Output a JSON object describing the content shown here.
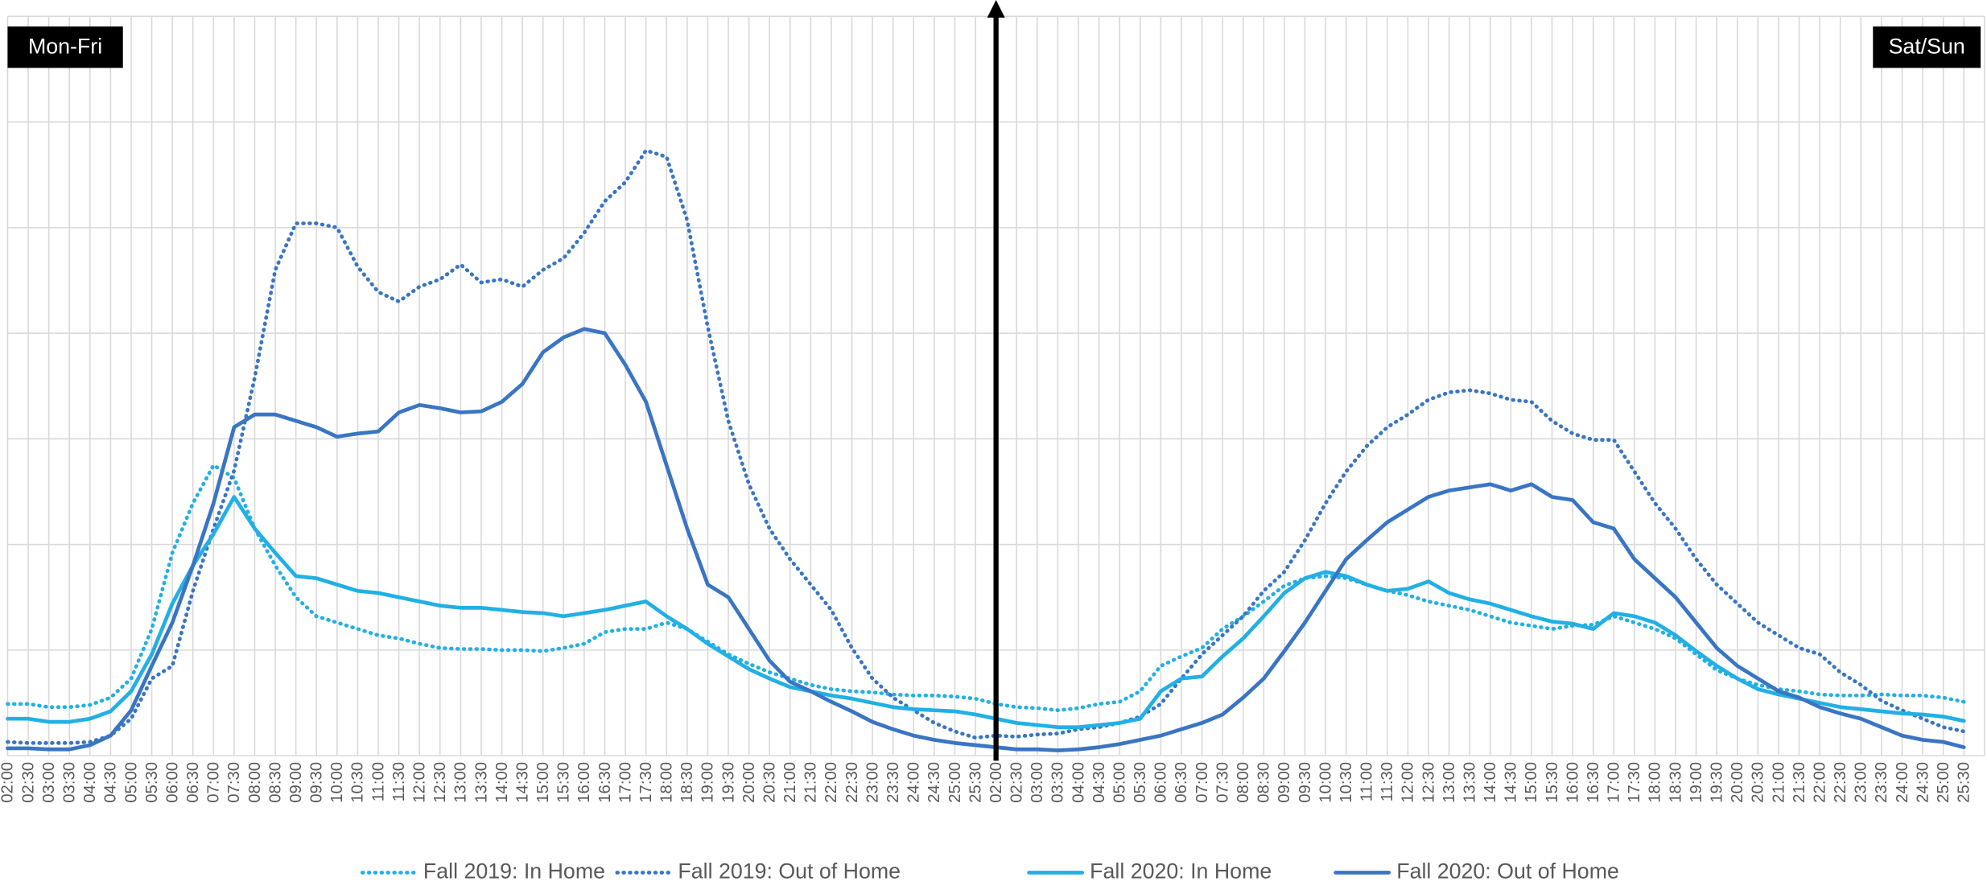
{
  "chart_data": {
    "type": "line",
    "annotations": [
      "Mon-Fri",
      "Sat/Sun"
    ],
    "categories": [
      "02:00",
      "02:30",
      "03:00",
      "03:30",
      "04:00",
      "04:30",
      "05:00",
      "05:30",
      "06:00",
      "06:30",
      "07:00",
      "07:30",
      "08:00",
      "08:30",
      "09:00",
      "09:30",
      "10:00",
      "10:30",
      "11:00",
      "11:30",
      "12:00",
      "12:30",
      "13:00",
      "13:30",
      "14:00",
      "14:30",
      "15:00",
      "15:30",
      "16:00",
      "16:30",
      "17:00",
      "17:30",
      "18:00",
      "18:30",
      "19:00",
      "19:30",
      "20:00",
      "20:30",
      "21:00",
      "21:30",
      "22:00",
      "22:30",
      "23:00",
      "23:30",
      "24:00",
      "24:30",
      "25:00",
      "25:30",
      "02:00",
      "02:30",
      "03:00",
      "03:30",
      "04:00",
      "04:30",
      "05:00",
      "05:30",
      "06:00",
      "06:30",
      "07:00",
      "07:30",
      "08:00",
      "08:30",
      "09:00",
      "09:30",
      "10:00",
      "10:30",
      "11:00",
      "11:30",
      "12:00",
      "12:30",
      "13:00",
      "13:30",
      "14:00",
      "14:30",
      "15:00",
      "15:30",
      "16:00",
      "16:30",
      "17:00",
      "17:30",
      "18:00",
      "18:30",
      "19:00",
      "19:30",
      "20:00",
      "20:30",
      "21:00",
      "21:30",
      "22:00",
      "22:30",
      "23:00",
      "23:30",
      "24:00",
      "24:30",
      "25:00",
      "25:30"
    ],
    "ylim": [
      0,
      7
    ],
    "yticks": [
      0,
      1,
      2,
      3,
      4,
      5,
      6,
      7
    ],
    "grid": true,
    "series": [
      {
        "name": "Fall 2019: In Home",
        "color": "#22b0e4",
        "dash": "dotted",
        "values": [
          0.49,
          0.49,
          0.46,
          0.46,
          0.48,
          0.55,
          0.73,
          1.2,
          1.92,
          2.39,
          2.75,
          2.63,
          2.15,
          1.8,
          1.5,
          1.32,
          1.26,
          1.2,
          1.14,
          1.11,
          1.06,
          1.02,
          1.01,
          1.01,
          1.0,
          1.0,
          0.99,
          1.02,
          1.06,
          1.17,
          1.2,
          1.2,
          1.26,
          1.2,
          1.08,
          0.96,
          0.87,
          0.79,
          0.73,
          0.67,
          0.63,
          0.61,
          0.6,
          0.58,
          0.57,
          0.57,
          0.56,
          0.54,
          0.49,
          0.46,
          0.45,
          0.43,
          0.45,
          0.49,
          0.51,
          0.61,
          0.85,
          0.94,
          1.02,
          1.2,
          1.32,
          1.46,
          1.61,
          1.68,
          1.7,
          1.68,
          1.62,
          1.56,
          1.52,
          1.46,
          1.42,
          1.38,
          1.32,
          1.26,
          1.23,
          1.2,
          1.23,
          1.24,
          1.32,
          1.26,
          1.2,
          1.11,
          0.96,
          0.81,
          0.73,
          0.67,
          0.63,
          0.61,
          0.58,
          0.57,
          0.57,
          0.58,
          0.57,
          0.57,
          0.55,
          0.51
        ]
      },
      {
        "name": "Fall 2019: Out of Home",
        "color": "#3a75c4",
        "dash": "dotted",
        "values": [
          0.13,
          0.12,
          0.12,
          0.12,
          0.13,
          0.19,
          0.35,
          0.73,
          0.85,
          1.56,
          2.15,
          2.7,
          3.58,
          4.6,
          5.04,
          5.04,
          5.0,
          4.63,
          4.39,
          4.3,
          4.44,
          4.51,
          4.65,
          4.48,
          4.51,
          4.44,
          4.6,
          4.71,
          4.95,
          5.25,
          5.43,
          5.73,
          5.67,
          5.07,
          4.06,
          3.17,
          2.57,
          2.15,
          1.86,
          1.62,
          1.38,
          1.02,
          0.73,
          0.55,
          0.43,
          0.31,
          0.23,
          0.17,
          0.19,
          0.18,
          0.2,
          0.21,
          0.25,
          0.27,
          0.31,
          0.37,
          0.49,
          0.73,
          0.96,
          1.14,
          1.32,
          1.56,
          1.74,
          2.04,
          2.39,
          2.69,
          2.93,
          3.11,
          3.23,
          3.37,
          3.44,
          3.46,
          3.43,
          3.37,
          3.35,
          3.17,
          3.05,
          2.99,
          2.99,
          2.69,
          2.39,
          2.15,
          1.86,
          1.62,
          1.44,
          1.26,
          1.14,
          1.02,
          0.96,
          0.79,
          0.67,
          0.52,
          0.43,
          0.35,
          0.27,
          0.23
        ]
      },
      {
        "name": "Fall 2020: In Home",
        "color": "#22b0e4",
        "dash": "solid",
        "values": [
          0.35,
          0.35,
          0.32,
          0.32,
          0.35,
          0.42,
          0.61,
          0.96,
          1.44,
          1.8,
          2.1,
          2.45,
          2.15,
          1.92,
          1.7,
          1.68,
          1.62,
          1.56,
          1.54,
          1.5,
          1.46,
          1.42,
          1.4,
          1.4,
          1.38,
          1.36,
          1.35,
          1.32,
          1.35,
          1.38,
          1.42,
          1.46,
          1.32,
          1.2,
          1.06,
          0.94,
          0.82,
          0.73,
          0.65,
          0.61,
          0.57,
          0.54,
          0.5,
          0.46,
          0.44,
          0.43,
          0.42,
          0.39,
          0.35,
          0.31,
          0.29,
          0.27,
          0.27,
          0.29,
          0.31,
          0.35,
          0.61,
          0.73,
          0.75,
          0.94,
          1.11,
          1.32,
          1.54,
          1.68,
          1.74,
          1.7,
          1.62,
          1.56,
          1.58,
          1.65,
          1.54,
          1.48,
          1.44,
          1.38,
          1.32,
          1.27,
          1.25,
          1.2,
          1.35,
          1.32,
          1.26,
          1.14,
          0.99,
          0.85,
          0.73,
          0.63,
          0.58,
          0.54,
          0.5,
          0.46,
          0.44,
          0.42,
          0.4,
          0.39,
          0.37,
          0.33
        ]
      },
      {
        "name": "Fall 2020: Out of Home",
        "color": "#3a75c4",
        "dash": "solid",
        "values": [
          0.07,
          0.07,
          0.06,
          0.06,
          0.1,
          0.19,
          0.43,
          0.85,
          1.26,
          1.8,
          2.39,
          3.11,
          3.23,
          3.23,
          3.17,
          3.11,
          3.02,
          3.05,
          3.07,
          3.25,
          3.32,
          3.29,
          3.25,
          3.26,
          3.35,
          3.52,
          3.82,
          3.96,
          4.04,
          4.0,
          3.7,
          3.35,
          2.75,
          2.15,
          1.62,
          1.5,
          1.2,
          0.9,
          0.7,
          0.61,
          0.51,
          0.42,
          0.32,
          0.25,
          0.19,
          0.15,
          0.12,
          0.1,
          0.08,
          0.06,
          0.06,
          0.05,
          0.06,
          0.08,
          0.11,
          0.15,
          0.19,
          0.25,
          0.31,
          0.39,
          0.55,
          0.73,
          0.99,
          1.26,
          1.56,
          1.86,
          2.04,
          2.21,
          2.33,
          2.45,
          2.51,
          2.54,
          2.57,
          2.51,
          2.57,
          2.45,
          2.42,
          2.21,
          2.15,
          1.86,
          1.68,
          1.5,
          1.26,
          1.02,
          0.85,
          0.73,
          0.61,
          0.55,
          0.46,
          0.4,
          0.35,
          0.27,
          0.19,
          0.15,
          0.13,
          0.08
        ]
      }
    ]
  }
}
